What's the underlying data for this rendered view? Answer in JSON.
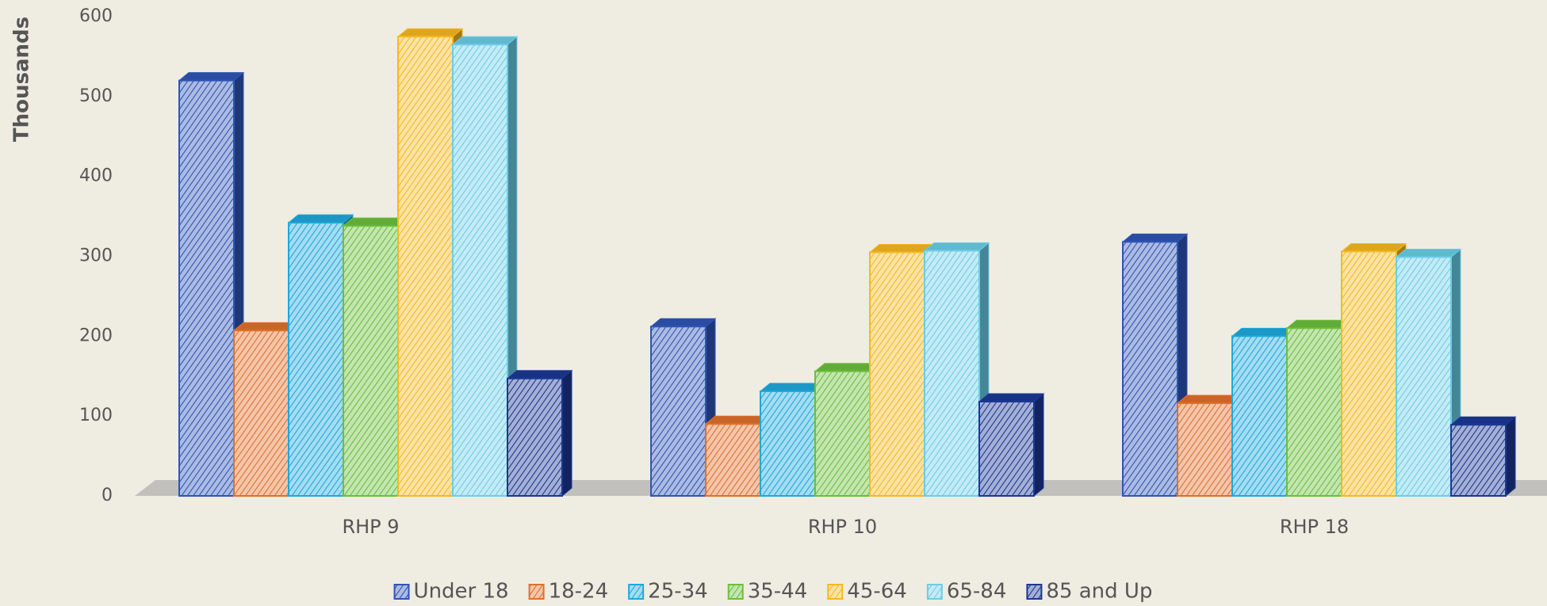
{
  "chart_data": {
    "type": "bar3d",
    "y_axis_label": "Thousands",
    "categories": [
      "RHP 9",
      "RHP 10",
      "RHP 18"
    ],
    "series": [
      {
        "name": "Under 18",
        "color": "#2f55b5",
        "values": [
          520,
          212,
          318
        ]
      },
      {
        "name": "18-24",
        "color": "#e0702c",
        "values": [
          207,
          90,
          116
        ]
      },
      {
        "name": "25-34",
        "color": "#1fa8dc",
        "values": [
          342,
          131,
          200
        ]
      },
      {
        "name": "35-44",
        "color": "#6cbf3c",
        "values": [
          338,
          156,
          210
        ]
      },
      {
        "name": "45-64",
        "color": "#f5b820",
        "values": [
          575,
          305,
          306
        ]
      },
      {
        "name": "65-84",
        "color": "#6ccde6",
        "values": [
          565,
          307,
          299
        ]
      },
      {
        "name": "85 and Up",
        "color": "#1b3894",
        "values": [
          147,
          118,
          89
        ]
      }
    ],
    "ylim": [
      0,
      600
    ],
    "yticks": [
      0,
      100,
      200,
      300,
      400,
      500,
      600
    ],
    "legend": "bottom"
  }
}
